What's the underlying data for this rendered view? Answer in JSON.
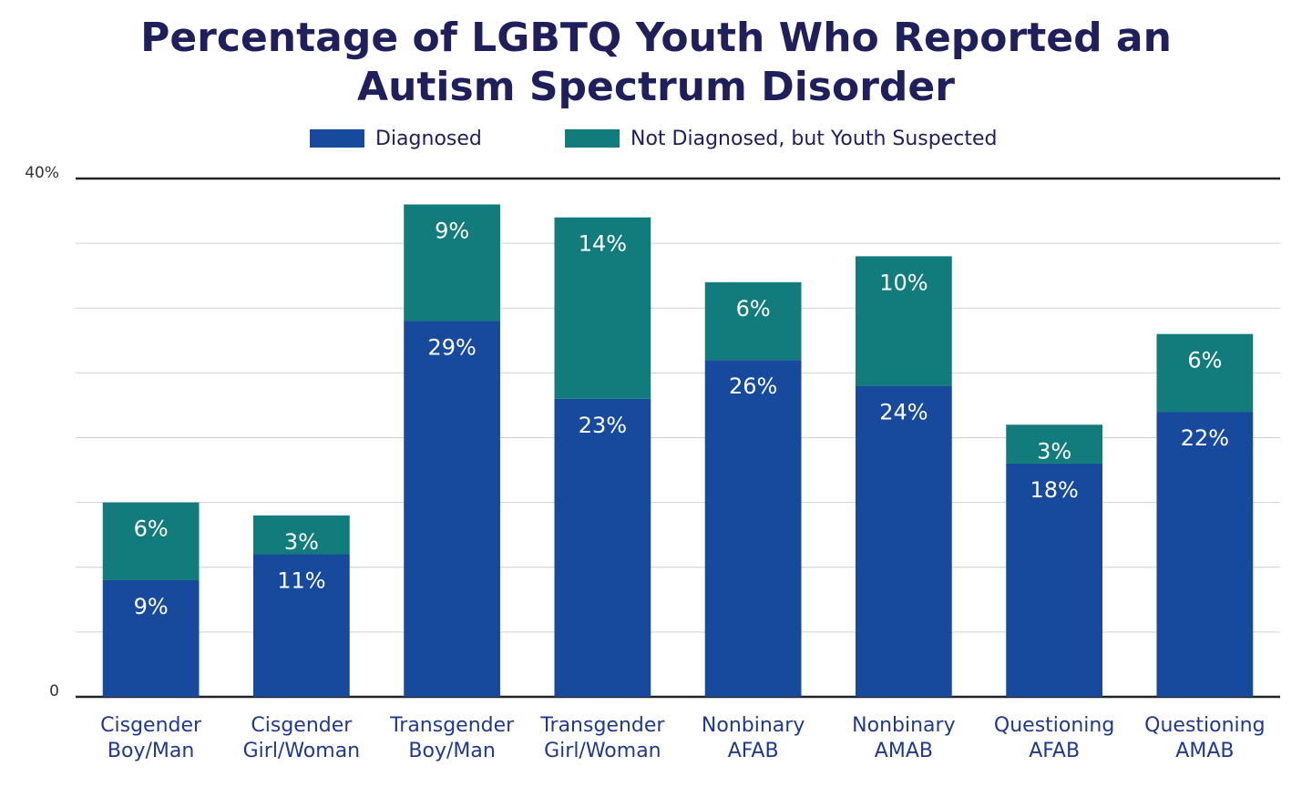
{
  "chart_data": {
    "type": "stacked_bar",
    "title": "Percentage of LGBTQ Youth Who Reported an Autism Spectrum Disorder",
    "categories": [
      "Cisgender Boy/Man",
      "Cisgender Girl/Woman",
      "Transgender Boy/Man",
      "Transgender Girl/Woman",
      "Nonbinary AFAB",
      "Nonbinary AMAB",
      "Questioning AFAB",
      "Questioning AMAB"
    ],
    "series": [
      {
        "name": "Diagnosed",
        "color": "#174a9c",
        "values": [
          9,
          11,
          29,
          23,
          26,
          24,
          18,
          22
        ],
        "value_labels": [
          "9%",
          "11%",
          "29%",
          "23%",
          "26%",
          "24%",
          "18%",
          "22%"
        ]
      },
      {
        "name": "Not Diagnosed, but Youth Suspected",
        "color": "#127b7b",
        "values": [
          6,
          3,
          9,
          14,
          6,
          10,
          3,
          6
        ],
        "value_labels": [
          "6%",
          "3%",
          "9%",
          "14%",
          "6%",
          "10%",
          "3%",
          "6%"
        ]
      }
    ],
    "ylim": [
      0,
      40
    ],
    "yticks": [
      0,
      {
        "value": 5,
        "label": null
      },
      {
        "value": 10,
        "label": null
      },
      {
        "value": 15,
        "label": null
      },
      {
        "value": 20,
        "label": null
      },
      {
        "value": 25,
        "label": null
      },
      {
        "value": 30,
        "label": null
      },
      {
        "value": 35,
        "label": null
      },
      {
        "value": 40,
        "label": "40%"
      }
    ],
    "grid": true,
    "legend": "top"
  }
}
